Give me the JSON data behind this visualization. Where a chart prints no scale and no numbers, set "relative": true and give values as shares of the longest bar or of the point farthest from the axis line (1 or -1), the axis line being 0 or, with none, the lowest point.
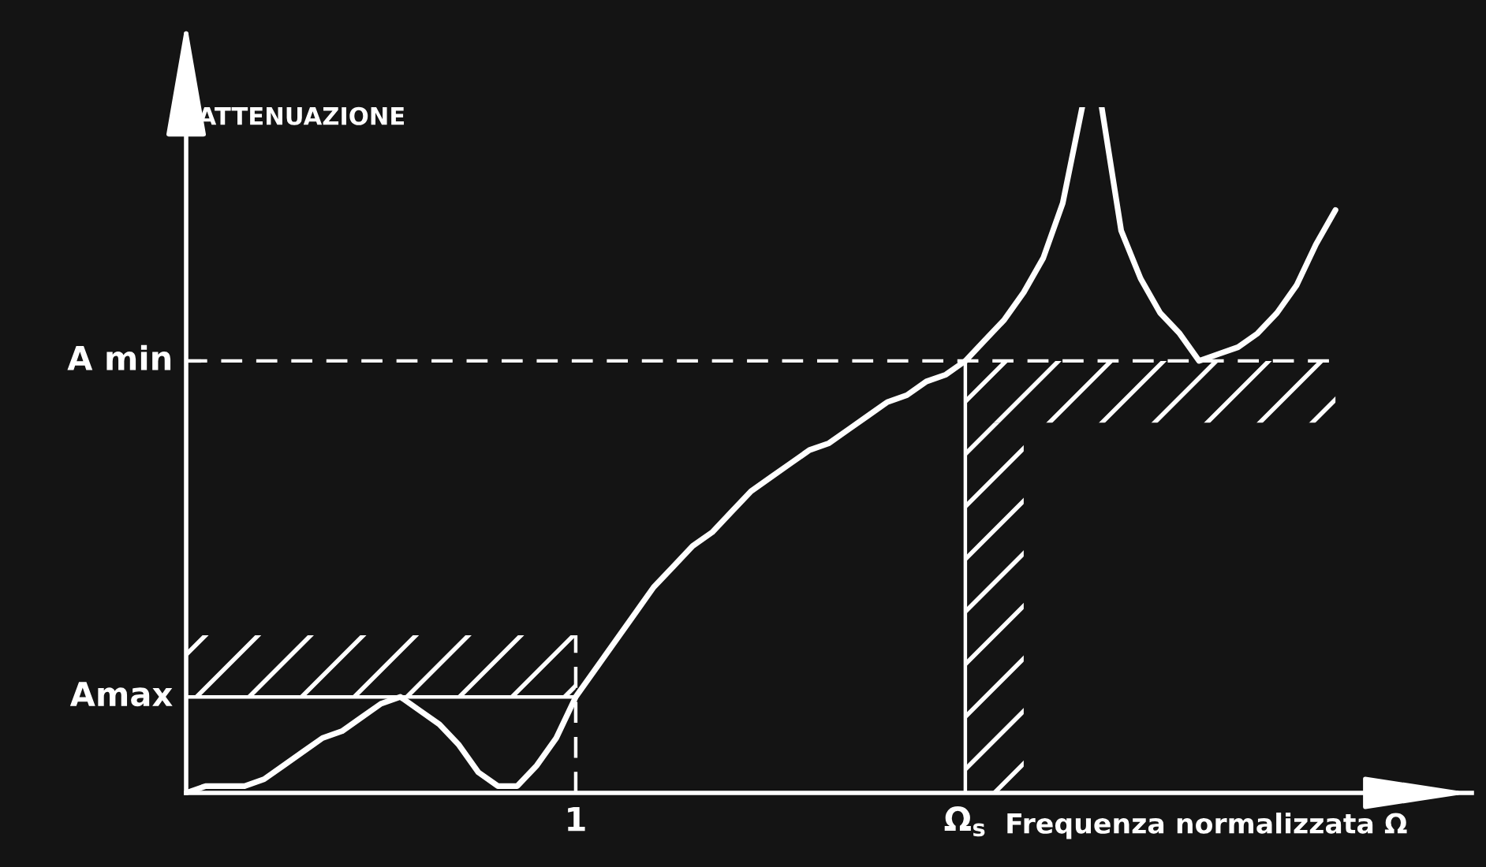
{
  "chart_data": {
    "type": "line",
    "relative": true,
    "xlabel": "Frequenza normalizzata Ω",
    "ylabel": "ATTENUAZIONE",
    "tick_labels": "x",
    "categories": [
      null,
      null,
      null,
      null,
      null,
      null,
      null,
      null,
      null,
      null,
      null,
      null,
      null,
      null,
      null,
      null,
      null,
      null,
      null,
      null,
      "1",
      null,
      null,
      null,
      null,
      null,
      null,
      null,
      null,
      null,
      null,
      null,
      null,
      null,
      null,
      null,
      null,
      null,
      null,
      null,
      "Ω$_{s}$",
      null,
      null,
      null,
      null,
      null,
      null,
      null,
      null,
      null,
      null,
      null,
      null,
      null,
      null,
      null,
      null,
      null,
      null,
      null,
      null,
      null,
      null,
      null,
      null,
      null,
      null
    ],
    "series": [
      {
        "color": "#ffffff",
        "values": [
          0,
          0.01,
          0.01,
          0.01,
          0.02,
          0.04,
          0.06,
          0.08,
          0.09,
          0.11,
          0.13,
          0.14,
          0.12,
          0.1,
          0.07,
          0.03,
          0.01,
          0.01,
          0.04,
          0.08,
          0.14,
          0.18,
          0.22,
          0.26,
          0.3,
          0.33,
          0.36,
          0.38,
          0.41,
          0.44,
          0.46,
          0.48,
          0.5,
          0.51,
          0.53,
          0.55,
          0.57,
          0.58,
          0.6,
          0.61,
          0.63,
          0.66,
          0.69,
          0.73,
          0.78,
          0.86,
          1.0,
          null,
          null,
          null,
          null,
          null,
          null,
          null,
          null,
          null,
          null,
          null,
          null,
          null,
          null,
          null,
          null,
          null,
          null,
          null,
          null
        ]
      },
      {
        "color": "#ffffff",
        "values": [
          null,
          null,
          null,
          null,
          null,
          null,
          null,
          null,
          null,
          null,
          null,
          null,
          null,
          null,
          null,
          null,
          null,
          null,
          null,
          null,
          null,
          null,
          null,
          null,
          null,
          null,
          null,
          null,
          null,
          null,
          null,
          null,
          null,
          null,
          null,
          null,
          null,
          null,
          null,
          null,
          null,
          null,
          null,
          null,
          null,
          null,
          null,
          1.0,
          0.82,
          0.75,
          0.7,
          0.67,
          0.63,
          0.64,
          0.65,
          0.67,
          0.7,
          0.74,
          0.8,
          0.85,
          null,
          null,
          null,
          null,
          null,
          null,
          null
        ]
      }
    ],
    "ref_lines": [
      {
        "axis": "y",
        "value": 0.63,
        "label": "A min",
        "line_style": "dashed",
        "color": "#ffffff"
      },
      {
        "axis": "y",
        "value": 0.14,
        "label": "Amax",
        "color": "#ffffff"
      },
      {
        "axis": "x",
        "value": "1",
        "line_style": "dashed",
        "color": "#ffffff"
      },
      {
        "axis": "x",
        "value": "Ω$_{s}$",
        "color": "#ffffff"
      }
    ],
    "bands": [
      {
        "axis": "y",
        "from": 0.14,
        "to": 0.23,
        "color": "#ffffff"
      },
      {
        "axis": "y",
        "from": 0.54,
        "to": 0.63,
        "color": "#ffffff"
      },
      {
        "axis": "y",
        "from": 0,
        "to": 0.54,
        "color": "#ffffff"
      }
    ]
  }
}
